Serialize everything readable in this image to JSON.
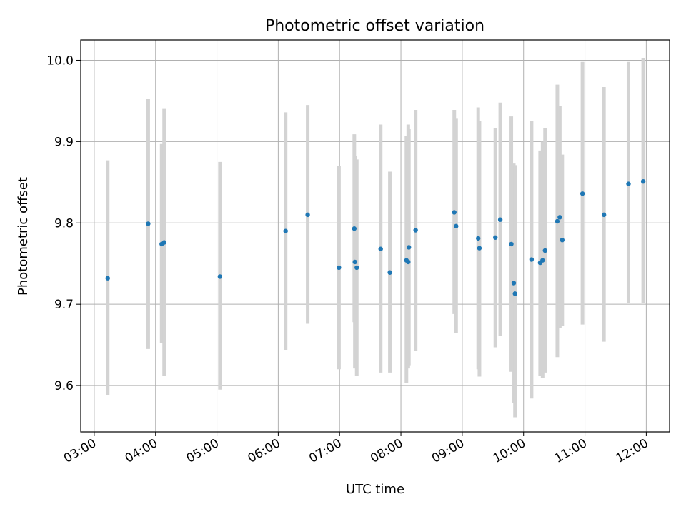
{
  "chart_data": {
    "type": "scatter",
    "title": "Photometric offset variation",
    "xlabel": "UTC time",
    "ylabel": "Photometric offset",
    "x_unit": "hours UTC",
    "xlim": [
      2.78,
      12.38
    ],
    "ylim": [
      9.543,
      10.025
    ],
    "grid": true,
    "legend": "none",
    "colors": {
      "point": "#1f77b4",
      "errorbar": "#d3d3d3",
      "grid": "#b0b0b0"
    },
    "x_ticks": [
      {
        "value": 3,
        "label": "03:00"
      },
      {
        "value": 4,
        "label": "04:00"
      },
      {
        "value": 5,
        "label": "05:00"
      },
      {
        "value": 6,
        "label": "06:00"
      },
      {
        "value": 7,
        "label": "07:00"
      },
      {
        "value": 8,
        "label": "08:00"
      },
      {
        "value": 9,
        "label": "09:00"
      },
      {
        "value": 10,
        "label": "10:00"
      },
      {
        "value": 11,
        "label": "11:00"
      },
      {
        "value": 12,
        "label": "12:00"
      }
    ],
    "y_ticks": [
      {
        "value": 9.6,
        "label": "9.6"
      },
      {
        "value": 9.7,
        "label": "9.7"
      },
      {
        "value": 9.8,
        "label": "9.8"
      },
      {
        "value": 9.9,
        "label": "9.9"
      },
      {
        "value": 10.0,
        "label": "10.0"
      }
    ],
    "points": [
      {
        "x": 3.22,
        "y": 9.732,
        "lo": 9.588,
        "hi": 9.877
      },
      {
        "x": 3.88,
        "y": 9.799,
        "lo": 9.645,
        "hi": 9.953
      },
      {
        "x": 4.1,
        "y": 9.774,
        "lo": 9.652,
        "hi": 9.897
      },
      {
        "x": 4.14,
        "y": 9.776,
        "lo": 9.612,
        "hi": 9.941
      },
      {
        "x": 5.05,
        "y": 9.734,
        "lo": 9.595,
        "hi": 9.875
      },
      {
        "x": 6.12,
        "y": 9.79,
        "lo": 9.644,
        "hi": 9.936
      },
      {
        "x": 6.48,
        "y": 9.81,
        "lo": 9.676,
        "hi": 9.945
      },
      {
        "x": 6.99,
        "y": 9.745,
        "lo": 9.62,
        "hi": 9.87
      },
      {
        "x": 7.24,
        "y": 9.793,
        "lo": 9.678,
        "hi": 9.909
      },
      {
        "x": 7.25,
        "y": 9.752,
        "lo": 9.621,
        "hi": 9.882
      },
      {
        "x": 7.28,
        "y": 9.745,
        "lo": 9.612,
        "hi": 9.878
      },
      {
        "x": 7.67,
        "y": 9.768,
        "lo": 9.616,
        "hi": 9.921
      },
      {
        "x": 7.82,
        "y": 9.739,
        "lo": 9.616,
        "hi": 9.863
      },
      {
        "x": 8.09,
        "y": 9.754,
        "lo": 9.603,
        "hi": 9.907
      },
      {
        "x": 8.12,
        "y": 9.752,
        "lo": 9.621,
        "hi": 9.921
      },
      {
        "x": 8.13,
        "y": 9.77,
        "lo": 9.625,
        "hi": 9.916
      },
      {
        "x": 8.24,
        "y": 9.791,
        "lo": 9.643,
        "hi": 9.939
      },
      {
        "x": 8.87,
        "y": 9.813,
        "lo": 9.688,
        "hi": 9.939
      },
      {
        "x": 8.9,
        "y": 9.796,
        "lo": 9.665,
        "hi": 9.929
      },
      {
        "x": 9.26,
        "y": 9.781,
        "lo": 9.62,
        "hi": 9.942
      },
      {
        "x": 9.28,
        "y": 9.769,
        "lo": 9.611,
        "hi": 9.925
      },
      {
        "x": 9.54,
        "y": 9.782,
        "lo": 9.647,
        "hi": 9.917
      },
      {
        "x": 9.62,
        "y": 9.804,
        "lo": 9.661,
        "hi": 9.948
      },
      {
        "x": 9.8,
        "y": 9.774,
        "lo": 9.617,
        "hi": 9.931
      },
      {
        "x": 9.84,
        "y": 9.726,
        "lo": 9.579,
        "hi": 9.873
      },
      {
        "x": 9.86,
        "y": 9.713,
        "lo": 9.561,
        "hi": 9.871
      },
      {
        "x": 10.13,
        "y": 9.755,
        "lo": 9.584,
        "hi": 9.925
      },
      {
        "x": 10.27,
        "y": 9.751,
        "lo": 9.612,
        "hi": 9.889
      },
      {
        "x": 10.31,
        "y": 9.754,
        "lo": 9.609,
        "hi": 9.9
      },
      {
        "x": 10.35,
        "y": 9.766,
        "lo": 9.616,
        "hi": 9.917
      },
      {
        "x": 10.55,
        "y": 9.802,
        "lo": 9.635,
        "hi": 9.97
      },
      {
        "x": 10.59,
        "y": 9.807,
        "lo": 9.671,
        "hi": 9.944
      },
      {
        "x": 10.63,
        "y": 9.779,
        "lo": 9.673,
        "hi": 9.884
      },
      {
        "x": 10.96,
        "y": 9.836,
        "lo": 9.675,
        "hi": 9.998
      },
      {
        "x": 11.31,
        "y": 9.81,
        "lo": 9.654,
        "hi": 9.967
      },
      {
        "x": 11.71,
        "y": 9.848,
        "lo": 9.701,
        "hi": 9.998
      },
      {
        "x": 11.95,
        "y": 9.851,
        "lo": 9.701,
        "hi": 10.003
      }
    ]
  }
}
